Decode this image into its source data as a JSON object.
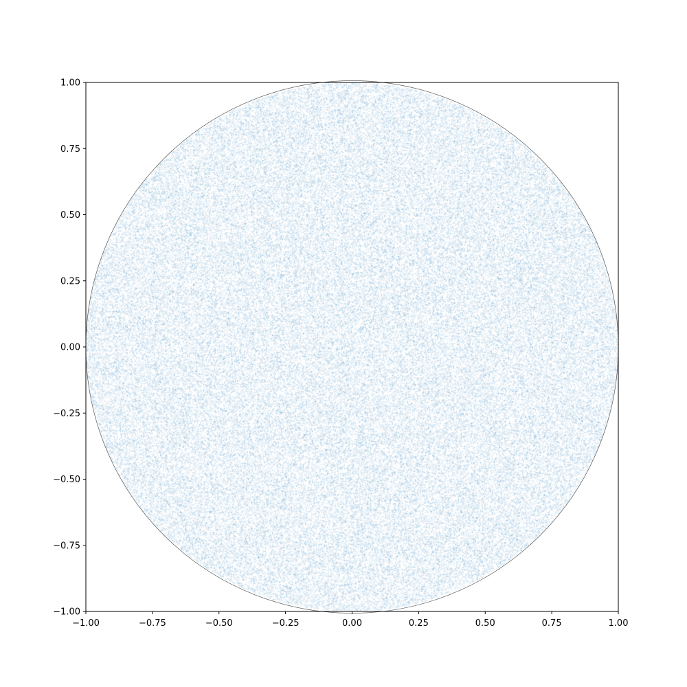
{
  "chart_data": {
    "type": "scatter",
    "title": "",
    "xlabel": "",
    "ylabel": "",
    "xlim": [
      -1.0,
      1.0
    ],
    "ylim": [
      -1.0,
      1.0
    ],
    "grid": false,
    "legend": "none",
    "description_of_points": "uniformly distributed random points filling the unit disk x^2 + y^2 <= 1",
    "marker_color": "#1f77b4",
    "outline_color": "#555555",
    "xticks": [
      -1.0,
      -0.75,
      -0.5,
      -0.25,
      0.0,
      0.25,
      0.5,
      0.75,
      1.0
    ],
    "yticks": [
      -1.0,
      -0.75,
      -0.5,
      -0.25,
      0.0,
      0.25,
      0.5,
      0.75,
      1.0
    ],
    "xtick_labels": [
      "−1.00",
      "−0.75",
      "−0.50",
      "−0.25",
      "0.00",
      "0.25",
      "0.50",
      "0.75",
      "1.00"
    ],
    "ytick_labels": [
      "−1.00",
      "−0.75",
      "−0.50",
      "−0.25",
      "0.00",
      "0.25",
      "0.50",
      "0.75",
      "1.00"
    ],
    "series": [
      {
        "region": "unit-disk",
        "center": [
          0.0,
          0.0
        ],
        "radius": 1.0
      }
    ]
  }
}
